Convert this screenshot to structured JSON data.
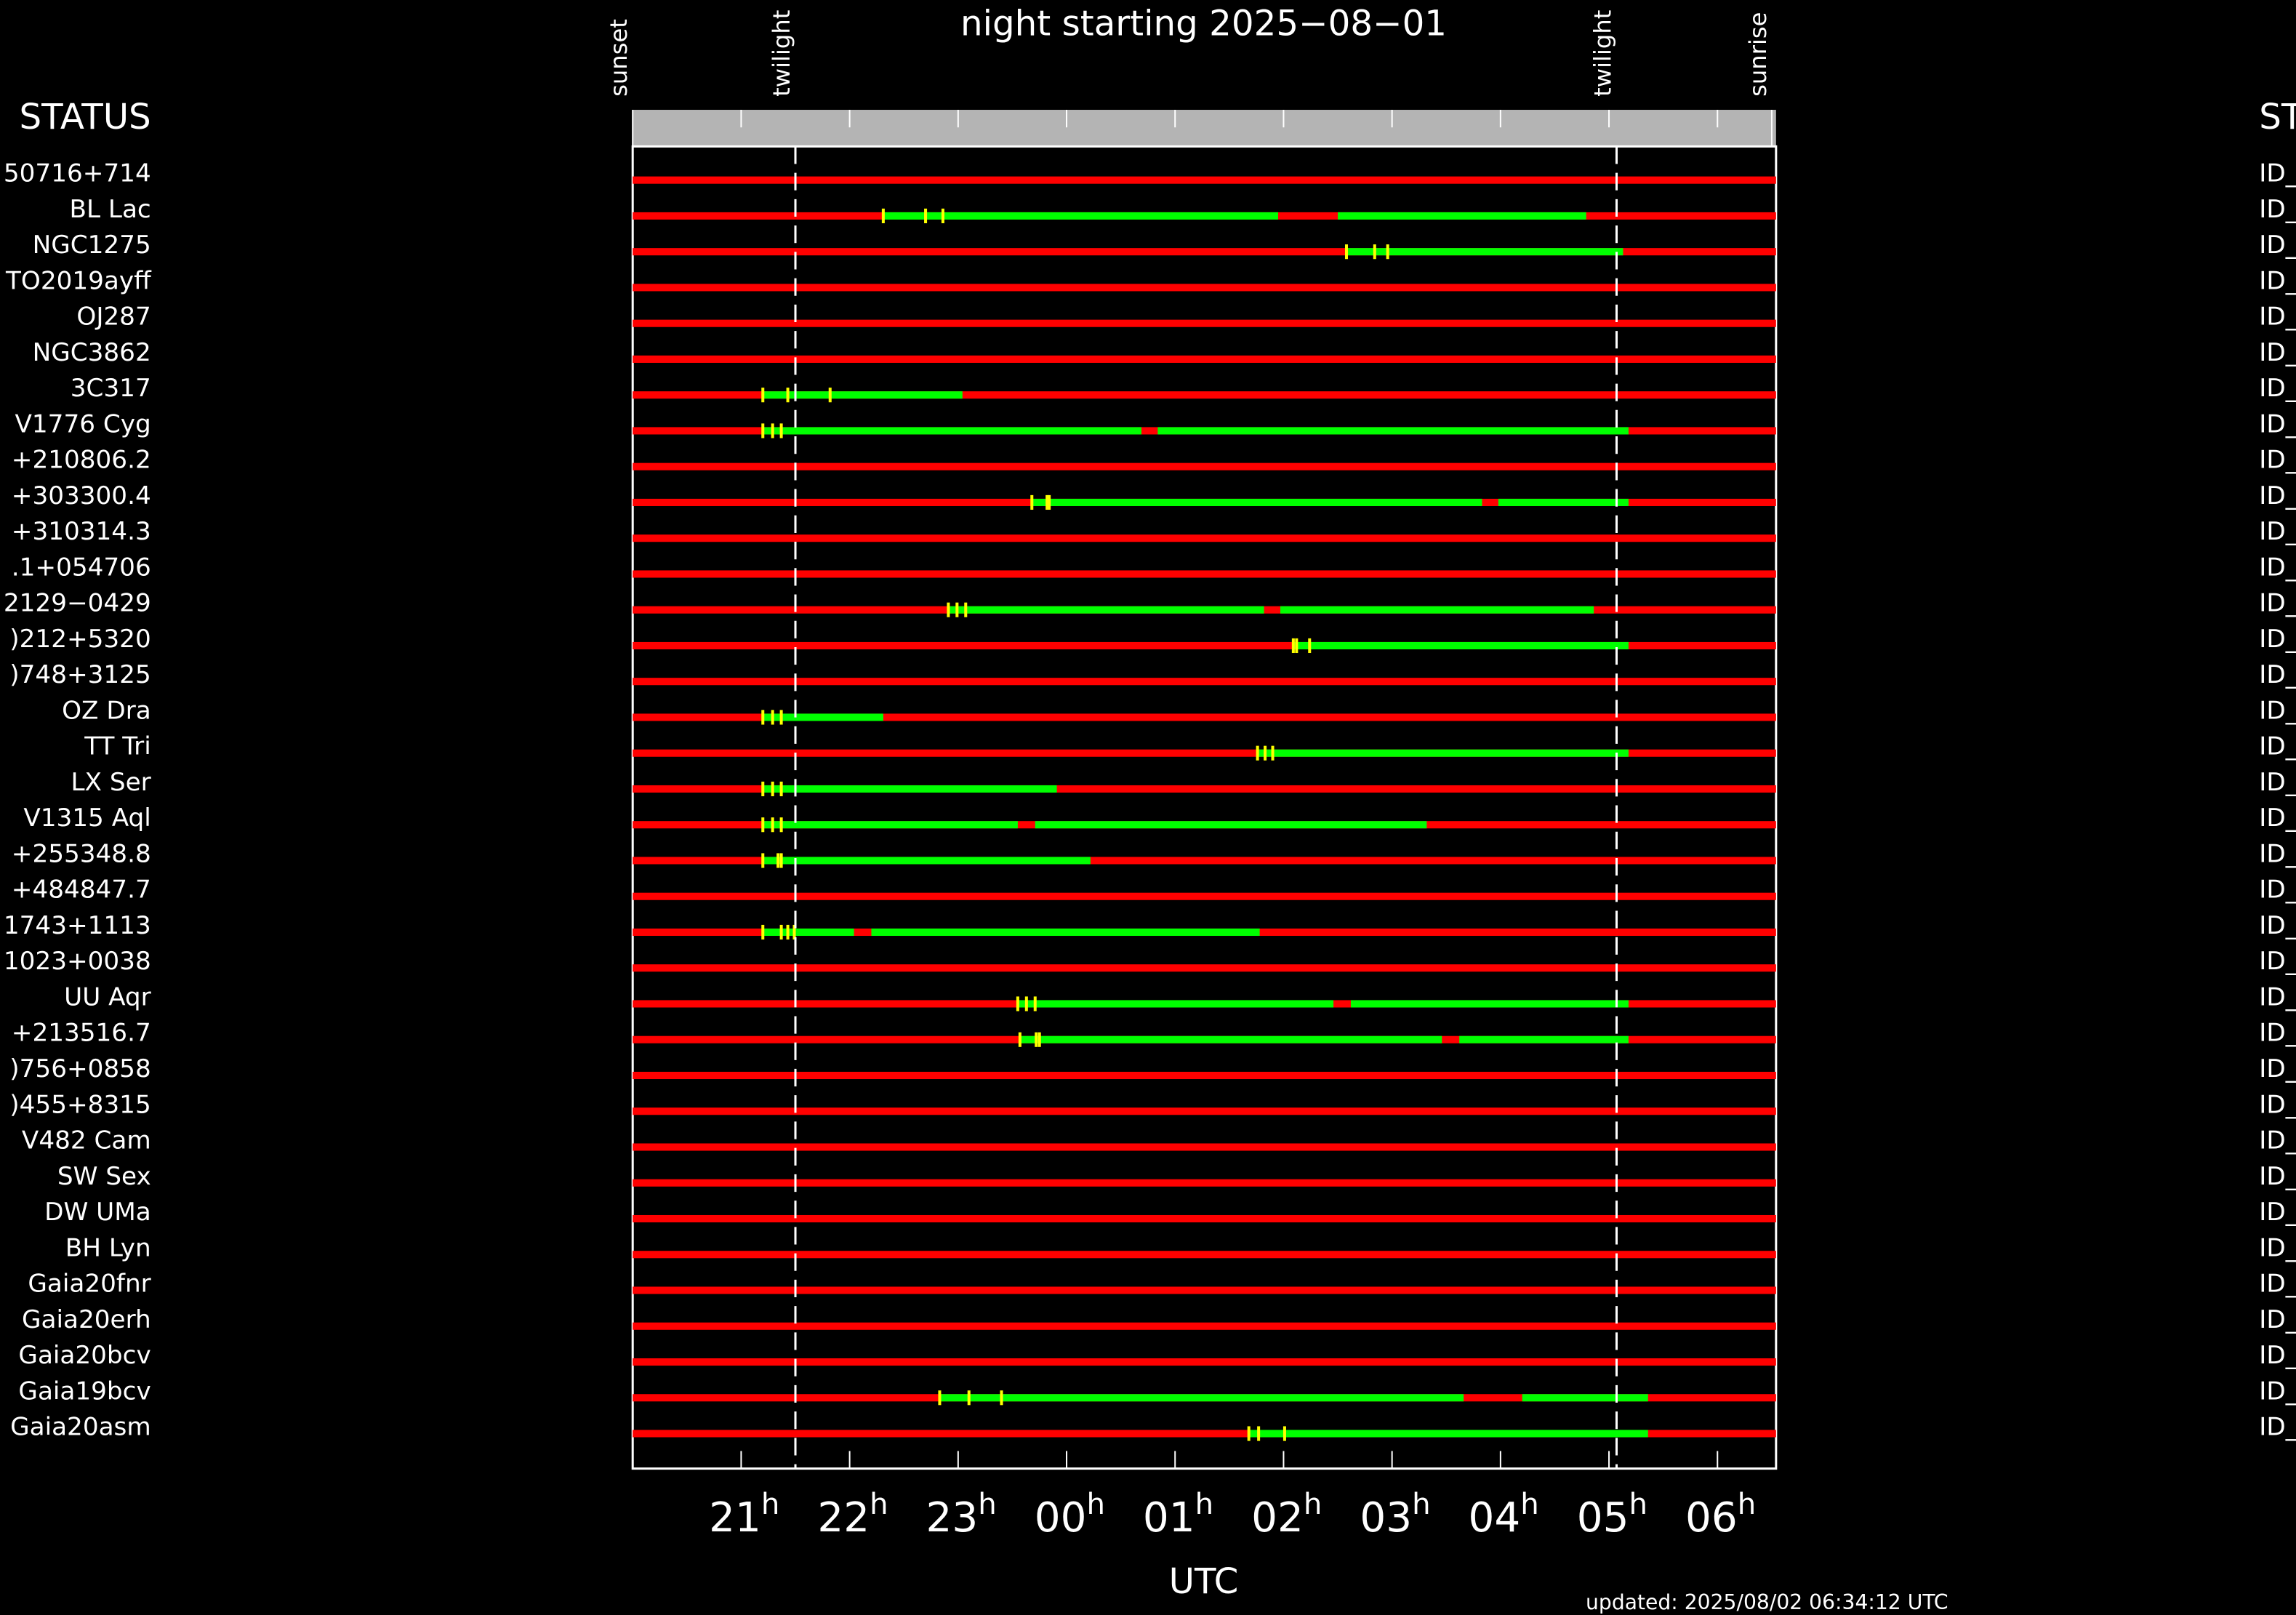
{
  "chart_data": {
    "type": "timeline",
    "title": "night starting 2025−08−01",
    "xlabel": "UTC",
    "status_heading_left": "STATUS",
    "status_heading_right": "ST",
    "updated": "updated: 2025/08/02 06:34:12 UTC",
    "xlim": [
      20,
      30.54
    ],
    "xticks": [
      {
        "value": 21,
        "label": "21h"
      },
      {
        "value": 22,
        "label": "22h"
      },
      {
        "value": 23,
        "label": "23h"
      },
      {
        "value": 24,
        "label": "00h"
      },
      {
        "value": 25,
        "label": "01h"
      },
      {
        "value": 26,
        "label": "02h"
      },
      {
        "value": 27,
        "label": "03h"
      },
      {
        "value": 28,
        "label": "04h"
      },
      {
        "value": 29,
        "label": "05h"
      },
      {
        "value": 30,
        "label": "06h"
      }
    ],
    "events": [
      {
        "label": "sunset",
        "value": 20,
        "dashed": false
      },
      {
        "label": "twilight",
        "value": 21.5,
        "dashed": true
      },
      {
        "label": "twilight",
        "value": 29.07,
        "dashed": true
      },
      {
        "label": "sunrise",
        "value": 30.5,
        "dashed": false
      }
    ],
    "colors": {
      "unobservable": "#ff0000",
      "observable": "#00ff00",
      "marker": "#ffff00"
    },
    "rows": [
      {
        "name": "50716+714",
        "status": "ID_",
        "windows": [],
        "markers": []
      },
      {
        "name": "BL Lac",
        "status": "ID_",
        "windows": [
          [
            22.31,
            25.95
          ],
          [
            26.5,
            28.79
          ]
        ],
        "markers": [
          22.31,
          22.7,
          22.86
        ]
      },
      {
        "name": "NGC1275",
        "status": "ID_",
        "windows": [
          [
            26.58,
            29.13
          ]
        ],
        "markers": [
          26.58,
          26.84,
          26.96
        ]
      },
      {
        "name": "TO2019ayff",
        "status": "ID_",
        "windows": [],
        "markers": []
      },
      {
        "name": "OJ287",
        "status": "ID_",
        "windows": [],
        "markers": []
      },
      {
        "name": "NGC3862",
        "status": "ID_",
        "windows": [],
        "markers": []
      },
      {
        "name": "3C317",
        "status": "ID_",
        "windows": [
          [
            21.2,
            23.04
          ]
        ],
        "markers": [
          21.2,
          21.43,
          21.82
        ]
      },
      {
        "name": "V1776 Cyg",
        "status": "ID_",
        "windows": [
          [
            21.2,
            24.69
          ],
          [
            24.84,
            29.18
          ]
        ],
        "markers": [
          21.2,
          21.29,
          21.37
        ]
      },
      {
        "name": "+210806.2",
        "status": "ID_",
        "windows": [],
        "markers": []
      },
      {
        "name": "+303300.4",
        "status": "ID_",
        "windows": [
          [
            23.68,
            27.83
          ],
          [
            27.98,
            29.18
          ]
        ],
        "markers": [
          23.68,
          23.82,
          23.84
        ]
      },
      {
        "name": "+310314.3",
        "status": "ID_",
        "windows": [],
        "markers": []
      },
      {
        "name": ".1+054706",
        "status": "ID_",
        "windows": [],
        "markers": []
      },
      {
        "name": "2129−0429",
        "status": "ID_",
        "windows": [
          [
            22.91,
            25.82
          ],
          [
            25.97,
            28.86
          ]
        ],
        "markers": [
          22.91,
          22.99,
          23.07
        ]
      },
      {
        "name": ")212+5320",
        "status": "ID_",
        "windows": [
          [
            26.09,
            29.18
          ]
        ],
        "markers": [
          26.09,
          26.12,
          26.24
        ]
      },
      {
        "name": ")748+3125",
        "status": "ID_",
        "windows": [],
        "markers": []
      },
      {
        "name": "OZ Dra",
        "status": "ID_",
        "windows": [
          [
            21.2,
            22.31
          ]
        ],
        "markers": [
          21.2,
          21.29,
          21.37
        ]
      },
      {
        "name": "TT Tri",
        "status": "ID_",
        "windows": [
          [
            25.76,
            29.18
          ]
        ],
        "markers": [
          25.76,
          25.83,
          25.9
        ]
      },
      {
        "name": "LX Ser",
        "status": "ID_",
        "windows": [
          [
            21.2,
            23.91
          ]
        ],
        "markers": [
          21.2,
          21.29,
          21.37
        ]
      },
      {
        "name": "V1315 Aql",
        "status": "ID_",
        "windows": [
          [
            21.2,
            23.55
          ],
          [
            23.71,
            27.32
          ]
        ],
        "markers": [
          21.2,
          21.29,
          21.37
        ]
      },
      {
        "name": "+255348.8",
        "status": "ID_",
        "windows": [
          [
            21.2,
            24.22
          ]
        ],
        "markers": [
          21.2,
          21.34,
          21.37
        ]
      },
      {
        "name": "+484847.7",
        "status": "ID_",
        "windows": [],
        "markers": []
      },
      {
        "name": "1743+1113",
        "status": "ID_",
        "windows": [
          [
            21.2,
            22.04
          ],
          [
            22.2,
            25.78
          ]
        ],
        "markers": [
          21.2,
          21.37,
          21.43,
          21.49
        ]
      },
      {
        "name": "1023+0038",
        "status": "ID_",
        "windows": [],
        "markers": []
      },
      {
        "name": "UU Aqr",
        "status": "ID_",
        "windows": [
          [
            23.55,
            26.46
          ],
          [
            26.62,
            29.18
          ]
        ],
        "markers": [
          23.55,
          23.63,
          23.71
        ]
      },
      {
        "name": "+213516.7",
        "status": "ID_",
        "windows": [
          [
            23.57,
            27.46
          ],
          [
            27.62,
            29.18
          ]
        ],
        "markers": [
          23.57,
          23.72,
          23.75
        ]
      },
      {
        "name": ")756+0858",
        "status": "ID_",
        "windows": [],
        "markers": []
      },
      {
        "name": ")455+8315",
        "status": "ID_",
        "windows": [],
        "markers": []
      },
      {
        "name": "V482 Cam",
        "status": "ID_",
        "windows": [],
        "markers": []
      },
      {
        "name": "SW Sex",
        "status": "ID_",
        "windows": [],
        "markers": []
      },
      {
        "name": "DW UMa",
        "status": "ID_",
        "windows": [],
        "markers": []
      },
      {
        "name": "BH Lyn",
        "status": "ID_",
        "windows": [],
        "markers": []
      },
      {
        "name": "Gaia20fnr",
        "status": "ID_",
        "windows": [],
        "markers": []
      },
      {
        "name": "Gaia20erh",
        "status": "ID_",
        "windows": [],
        "markers": []
      },
      {
        "name": "Gaia20bcv",
        "status": "ID_",
        "windows": [],
        "markers": []
      },
      {
        "name": "Gaia19bcv",
        "status": "ID_",
        "windows": [
          [
            22.83,
            27.66
          ],
          [
            28.2,
            29.36
          ]
        ],
        "markers": [
          22.83,
          23.1,
          23.4
        ]
      },
      {
        "name": "Gaia20asm",
        "status": "ID_",
        "windows": [
          [
            25.68,
            29.36
          ]
        ],
        "markers": [
          25.68,
          25.77,
          26.01
        ]
      }
    ]
  }
}
